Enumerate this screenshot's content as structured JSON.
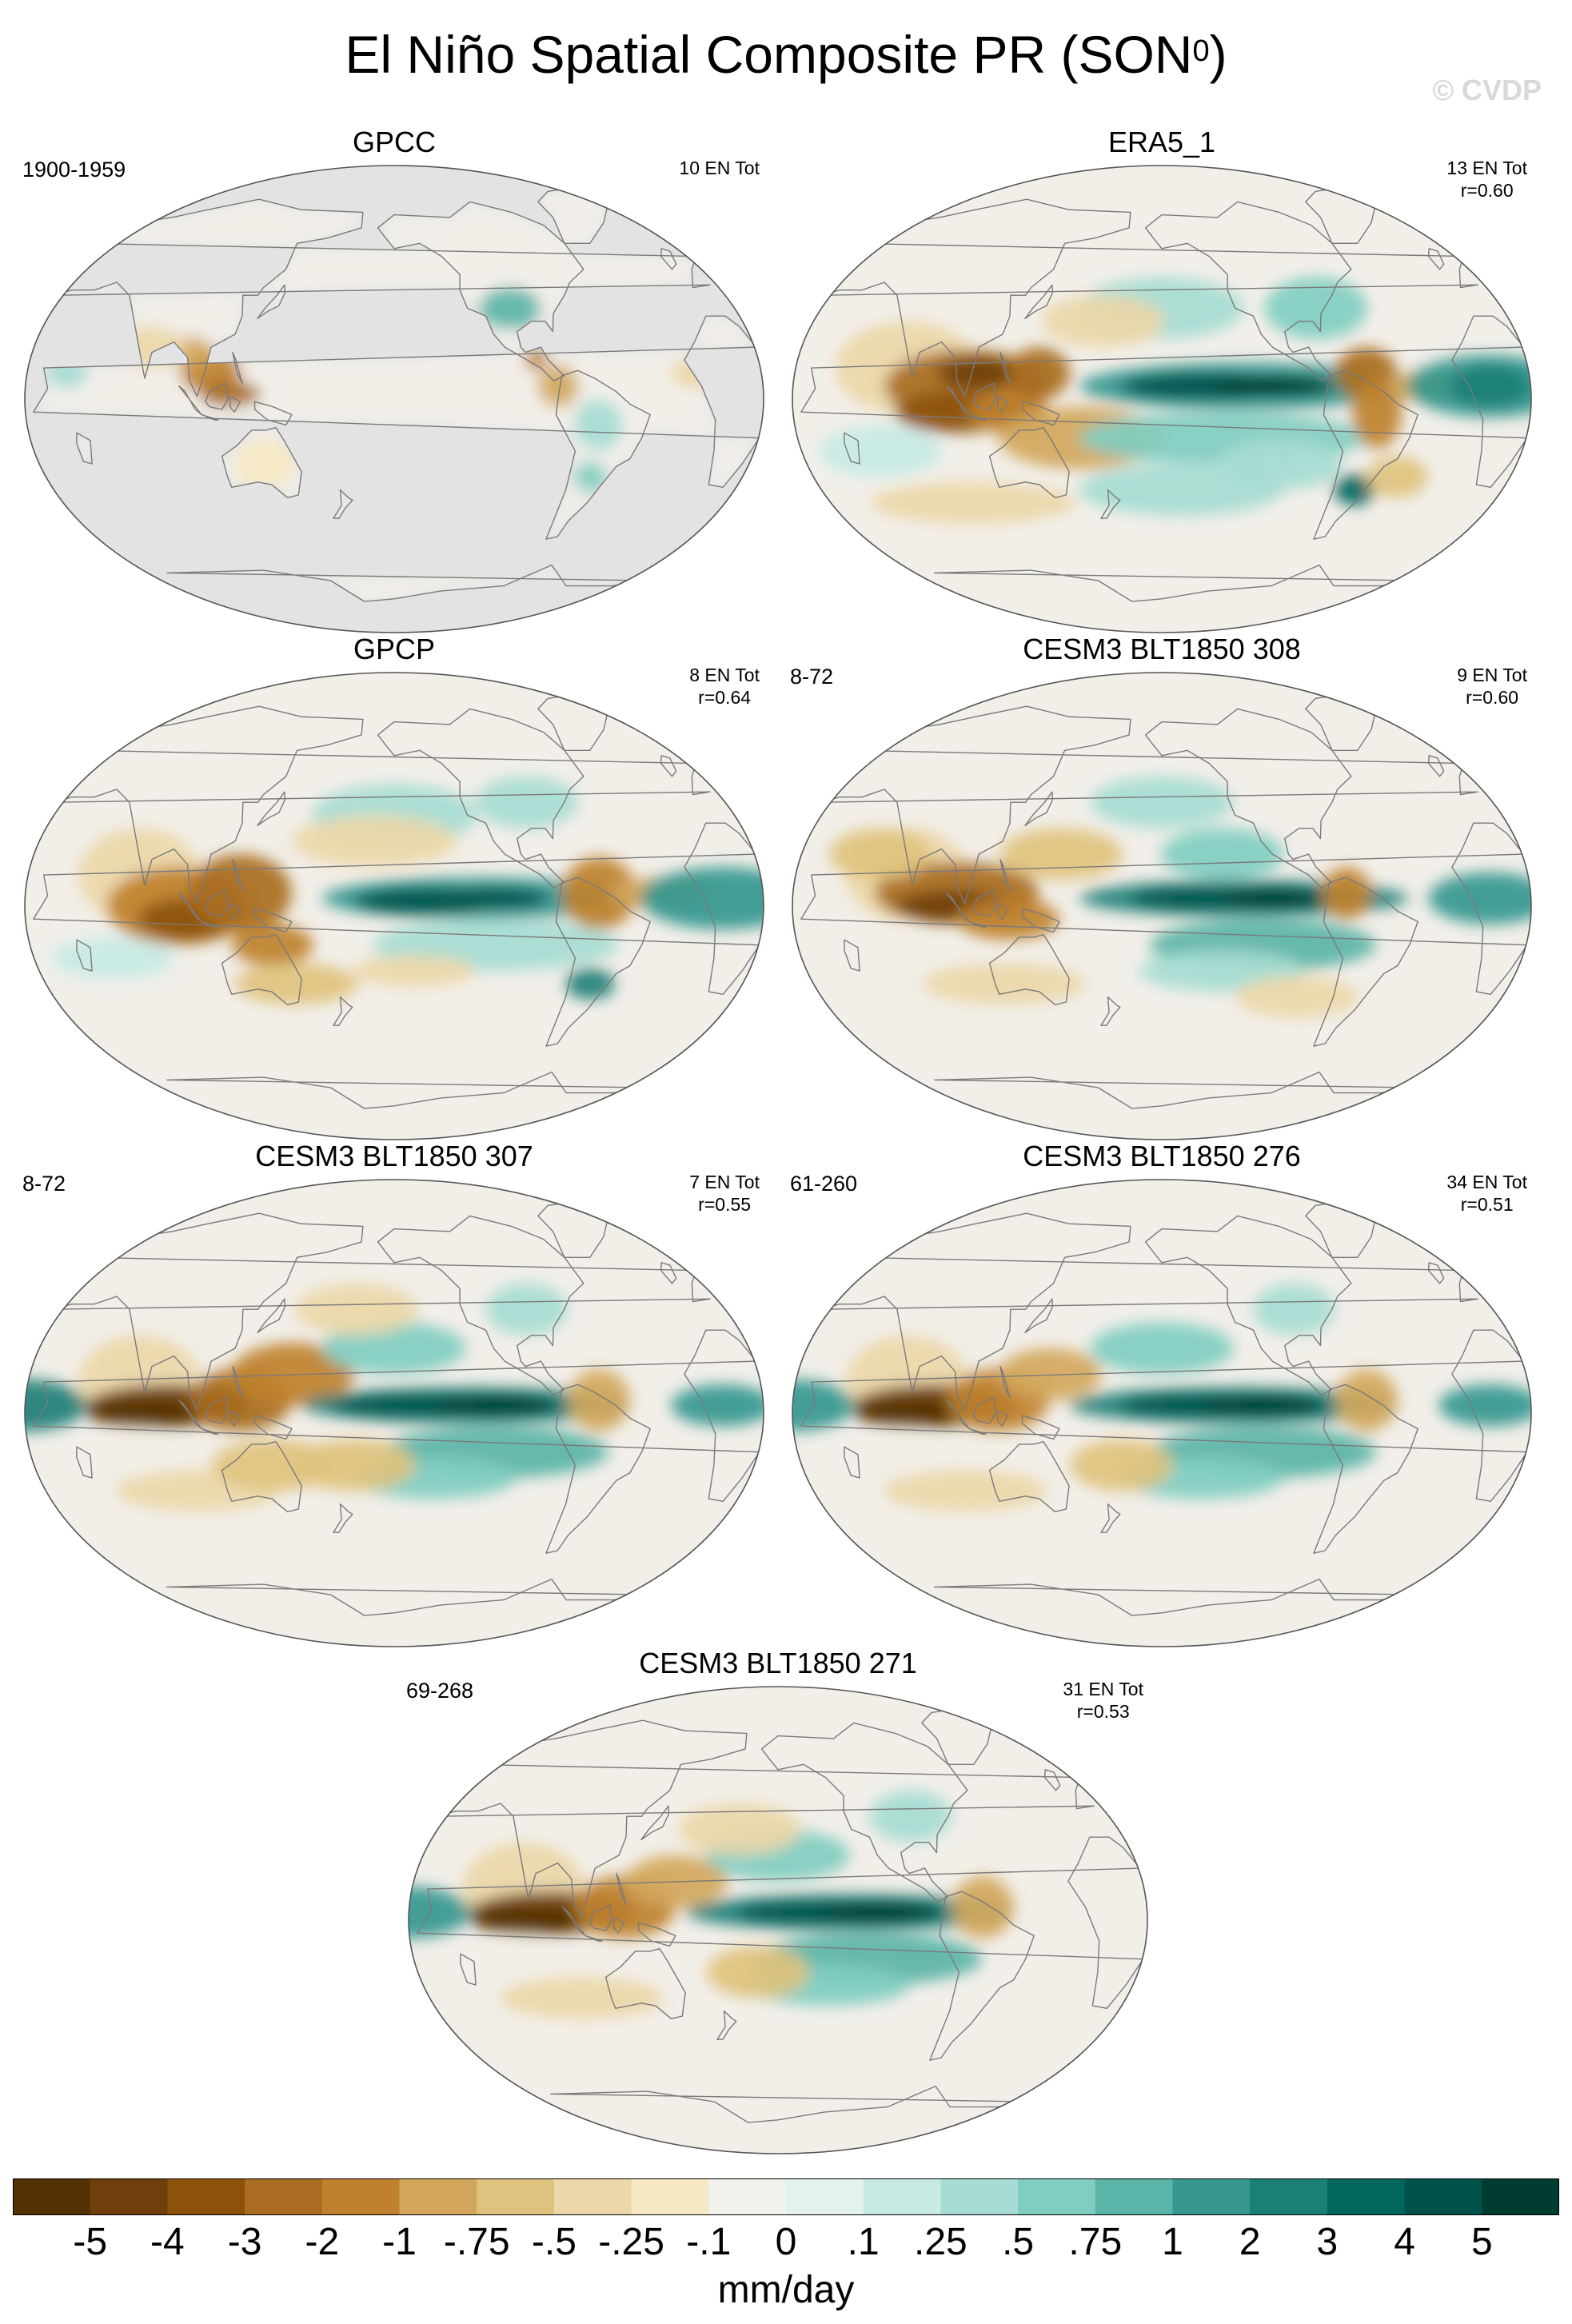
{
  "header": {
    "title": "El Niño Spatial Composite PR (SON",
    "title_sup": "0",
    "title_close": ")",
    "watermark": "© CVDP"
  },
  "colors": {
    "land_mask": "#e3e3e3",
    "coast": "#7a7a7a",
    "neutral": "#f2efe9"
  },
  "panels": [
    {
      "title": "GPCC",
      "period": "1900-1959",
      "stats_line1": "10 EN Tot",
      "stats_line2": "",
      "land_only": true
    },
    {
      "title": "ERA5_1",
      "period": "",
      "stats_line1": "13 EN Tot",
      "stats_line2": "r=0.60",
      "land_only": false
    },
    {
      "title": "GPCP",
      "period": "",
      "stats_line1": "8 EN Tot",
      "stats_line2": "r=0.64",
      "land_only": false
    },
    {
      "title": "CESM3 BLT1850 308",
      "period": "8-72",
      "stats_line1": "9 EN Tot",
      "stats_line2": "r=0.60",
      "land_only": false
    },
    {
      "title": "CESM3 BLT1850 307",
      "period": "8-72",
      "stats_line1": "7 EN Tot",
      "stats_line2": "r=0.55",
      "land_only": false
    },
    {
      "title": "CESM3 BLT1850 276",
      "period": "61-260",
      "stats_line1": "34 EN Tot",
      "stats_line2": "r=0.51",
      "land_only": false
    },
    {
      "title": "CESM3 BLT1850 271",
      "period": "69-268",
      "stats_line1": "31 EN Tot",
      "stats_line2": "r=0.53",
      "land_only": false
    }
  ],
  "chart_data": {
    "type": "heatmap",
    "title": "El Niño Spatial Composite PR (SON⁰)",
    "variable": "precipitation composite anomaly",
    "units": "mm/day",
    "projection": "Robinson, Pacific-centered",
    "colorbar": {
      "levels": [
        "-5",
        "-4",
        "-3",
        "-2",
        "-1",
        "-.75",
        "-.5",
        "-.25",
        "-.1",
        "0",
        ".1",
        ".25",
        ".5",
        ".75",
        "1",
        "2",
        "3",
        "4",
        "5"
      ],
      "colors": [
        "#543005",
        "#6f3f0b",
        "#8c510a",
        "#a96c20",
        "#bf812d",
        "#d2a75c",
        "#dfc27d",
        "#ecd7a8",
        "#f6e8c3",
        "#f3f1ec",
        "#e3f1ef",
        "#c7eae5",
        "#a6dcd3",
        "#80cdc1",
        "#5ab4a7",
        "#35978f",
        "#1c7f76",
        "#01665e",
        "#00524a",
        "#003c30"
      ]
    },
    "panels": [
      {
        "name": "GPCC",
        "events": 10,
        "pattern": "land-only; dry maritime continent and northern South America"
      },
      {
        "name": "ERA5_1",
        "events": 13,
        "r": 0.6,
        "pattern": "wet equatorial central-eastern Pacific, dry maritime continent"
      },
      {
        "name": "GPCP",
        "events": 8,
        "r": 0.64,
        "pattern": "wet equatorial central Pacific, dry western Pacific"
      },
      {
        "name": "CESM3 BLT1850 308",
        "events": 9,
        "r": 0.6,
        "pattern": "wet equatorial Pacific band, dry maritime continent"
      },
      {
        "name": "CESM3 BLT1850 307",
        "events": 7,
        "r": 0.55,
        "pattern": "strong wet equatorial Pacific, dry Indian Ocean"
      },
      {
        "name": "CESM3 BLT1850 276",
        "events": 34,
        "r": 0.51,
        "pattern": "wet equatorial Pacific, dry maritime continent"
      },
      {
        "name": "CESM3 BLT1850 271",
        "events": 31,
        "r": 0.53,
        "pattern": "wet equatorial Pacific, dry maritime continent"
      }
    ]
  }
}
